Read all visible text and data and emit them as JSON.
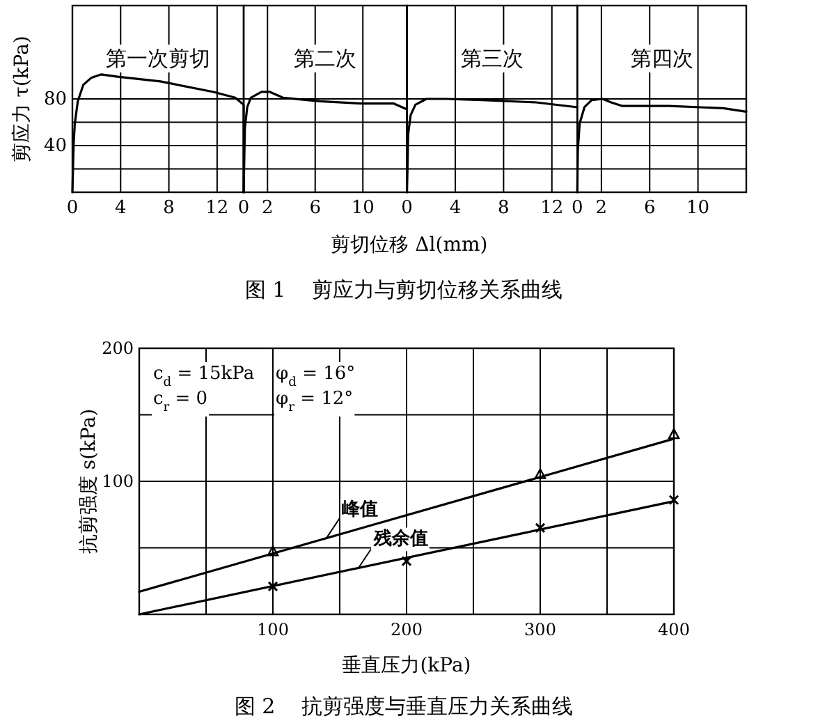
{
  "chart_data": [
    {
      "type": "line",
      "ylabel": "剪应力 τ(kPa)",
      "xlim": [
        0,
        14.2
      ],
      "ylim": [
        0,
        160
      ],
      "xticks": [
        0,
        4,
        8,
        12
      ],
      "yticks": [
        {
          "value": 20,
          "label": null
        },
        40,
        {
          "value": 60,
          "label": null
        },
        80
      ],
      "grid": true,
      "annotations": [
        "第一次剪切"
      ],
      "series": [
        {
          "color": "#000000",
          "x": [
            0,
            0.1,
            0.2,
            0.45,
            0.9,
            1.55,
            2.4,
            3.75,
            7.3,
            11.7,
            13.5,
            14.2,
            14.2
          ],
          "values": [
            0,
            41,
            59,
            78,
            92,
            98,
            101,
            99,
            95,
            86,
            81,
            75,
            0
          ]
        }
      ]
    },
    {
      "type": "line",
      "title": "图 1    剪应力与剪切位移关系曲线",
      "xlabel": "剪切位移 Δl(mm)",
      "xlim": [
        0,
        13.7
      ],
      "ylim": [
        0,
        160
      ],
      "xticks": [
        0,
        2,
        6,
        10
      ],
      "yticks": [
        {
          "value": 20,
          "label": null
        },
        40,
        {
          "value": 60,
          "label": null
        },
        80
      ],
      "tick_labels": "x",
      "grid": true,
      "annotations": [
        "第二次"
      ],
      "series": [
        {
          "color": "#000000",
          "x": [
            0,
            0.1,
            0.3,
            0.6,
            1.5,
            2.2,
            3.3,
            6.4,
            9.9,
            12.6,
            13.7
          ],
          "values": [
            0,
            55,
            73,
            81,
            86,
            86,
            81,
            78,
            76,
            76,
            71
          ]
        }
      ]
    },
    {
      "type": "line",
      "xlim": [
        0,
        14.1
      ],
      "ylim": [
        0,
        160
      ],
      "xticks": [
        0,
        4,
        8,
        12
      ],
      "yticks": [
        {
          "value": 20,
          "label": null
        },
        40,
        {
          "value": 60,
          "label": null
        },
        80
      ],
      "tick_labels": "x",
      "grid": true,
      "annotations": [
        "第三次"
      ],
      "series": [
        {
          "color": "#000000",
          "x": [
            0,
            0.1,
            0.3,
            0.7,
            1.6,
            3.2,
            6.2,
            10.7,
            14.0
          ],
          "values": [
            0,
            50,
            66,
            75,
            80,
            80,
            79,
            77,
            73
          ]
        }
      ]
    },
    {
      "type": "line",
      "xlim": [
        0,
        14.0
      ],
      "ylim": [
        0,
        160
      ],
      "xticks": [
        0,
        2,
        6,
        10
      ],
      "yticks": [
        {
          "value": 20,
          "label": null
        },
        40,
        {
          "value": 60,
          "label": null
        },
        80
      ],
      "tick_labels": "x",
      "grid": true,
      "annotations": [
        "第四次"
      ],
      "series": [
        {
          "color": "#000000",
          "x": [
            0,
            0.05,
            0.2,
            0.6,
            1.2,
            2.1,
            2.8,
            3.7,
            7.6,
            12.1,
            14.0
          ],
          "values": [
            0,
            36,
            59,
            73,
            79,
            80,
            77,
            74,
            74,
            72,
            69
          ]
        }
      ]
    },
    {
      "type": "line",
      "title": "图 2    抗剪强度与垂直压力关系曲线",
      "xlabel": "垂直压力(kPa)",
      "ylabel": "抗剪强度 s(kPa)",
      "xlim": [
        0,
        400
      ],
      "ylim": [
        0,
        200
      ],
      "xticks": [
        {
          "value": 50,
          "label": null
        },
        100,
        {
          "value": 150,
          "label": null
        },
        200,
        {
          "value": 250,
          "label": null
        },
        300,
        {
          "value": 350,
          "label": null
        },
        400
      ],
      "yticks": [
        {
          "value": 50,
          "label": null
        },
        100,
        {
          "value": 150,
          "label": null
        },
        200
      ],
      "grid": true,
      "annotations": [
        "c$_{d}$ = 15kPa",
        "φ$_{d}$ = 16°",
        "c$_{r}$ = 0",
        "φ$_{r}$ = 12°"
      ],
      "series": [
        {
          "name": "峰值",
          "type": "line",
          "color": "#000000",
          "x": [
            0,
            400
          ],
          "values": [
            17,
            132
          ]
        },
        {
          "name": "残余值",
          "type": "line",
          "color": "#000000",
          "x": [
            0,
            400
          ],
          "values": [
            0,
            85
          ]
        },
        {
          "type": "scatter",
          "marker": "triangle",
          "color": "#000000",
          "x": [
            100,
            300,
            400
          ],
          "values": [
            47,
            105,
            135
          ]
        },
        {
          "type": "scatter",
          "marker": "cross",
          "color": "#000000",
          "x": [
            100,
            200,
            300,
            400
          ],
          "values": [
            21,
            40,
            65,
            86
          ]
        }
      ]
    }
  ]
}
